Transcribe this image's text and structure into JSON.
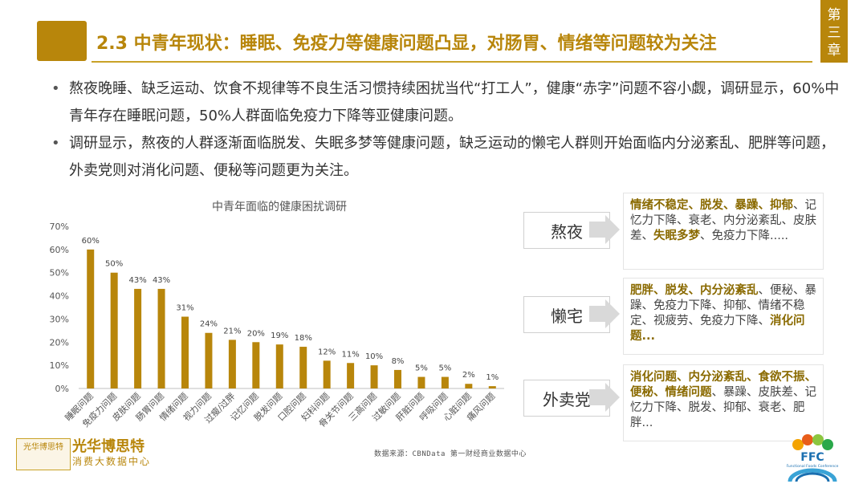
{
  "header": {
    "title": "2.3 中青年现状：睡眠、免疫力等健康问题凸显，对肠胃、情绪等问题较为关注",
    "chapter_tab": "第三章"
  },
  "bullets": [
    "熬夜晚睡、缺乏运动、饮食不规律等不良生活习惯持续困扰当代“打工人”，健康“赤字”问题不容小觑，调研显示，60%中青年存在睡眠问题，50%人群面临免疫力下降等亚健康问题。",
    "调研显示，熬夜的人群逐渐面临脱发、失眠多梦等健康问题，缺乏运动的懒宅人群则开始面临内分泌紊乱、肥胖等问题，外卖党则对消化问题、便秘等问题更为关注。"
  ],
  "chart_data": {
    "type": "bar",
    "title": "中青年面临的健康困扰调研",
    "categories": [
      "睡眠问题",
      "免疫力问题",
      "皮肤问题",
      "肠胃问题",
      "情绪问题",
      "视力问题",
      "过瘦/过胖",
      "记忆问题",
      "脱发问题",
      "口腔问题",
      "妇科问题",
      "骨关节问题",
      "三高问题",
      "过敏问题",
      "肝脏问题",
      "呼吸问题",
      "心脏问题",
      "痛风问题"
    ],
    "values": [
      60,
      50,
      43,
      43,
      31,
      24,
      21,
      20,
      19,
      18,
      12,
      11,
      10,
      8,
      5,
      5,
      2,
      1
    ],
    "value_labels": [
      "60%",
      "50%",
      "43%",
      "43%",
      "31%",
      "24%",
      "21%",
      "20%",
      "19%",
      "18%",
      "12%",
      "11%",
      "10%",
      "8%",
      "5%",
      "5%",
      "2%",
      "1%"
    ],
    "yticks": [
      "0%",
      "10%",
      "20%",
      "30%",
      "40%",
      "50%",
      "60%",
      "70%"
    ],
    "ylim": [
      0,
      70
    ],
    "grid": false,
    "bar_color": "#b8860b",
    "xlabel": "",
    "ylabel": ""
  },
  "source_note": "数据来源：CBNData 第一财经商业数据中心",
  "groups": [
    {
      "label": "熬夜",
      "segments": [
        {
          "t": "情绪不稳定、脱发、暴躁、抑郁",
          "h": true
        },
        {
          "t": "、记忆力下降、衰老、内分泌紊乱、皮肤差、",
          "h": false
        },
        {
          "t": "失眠多梦",
          "h": true
        },
        {
          "t": "、免疫力下降.....",
          "h": false
        }
      ]
    },
    {
      "label": "懒宅",
      "segments": [
        {
          "t": "肥胖、脱发、内分泌紊乱",
          "h": true
        },
        {
          "t": "、便秘、暴躁、免疫力下降、抑郁、情绪不稳定、视疲劳、免疫力下降、",
          "h": false
        },
        {
          "t": "消化问题...",
          "h": true
        }
      ]
    },
    {
      "label": "外卖党",
      "segments": [
        {
          "t": "消化问题、内分泌紊乱、食欲不振、便秘、情绪问题",
          "h": true
        },
        {
          "t": "、暴躁、皮肤差、记忆力下降、脱发、抑郁、衰老、肥胖...",
          "h": false
        }
      ]
    }
  ],
  "logo_left": {
    "seal": "光华博思特",
    "name": "光华博思特",
    "sub": "消费大数据中心"
  },
  "logo_right": {
    "text": "FFC",
    "sub": "Functional Foods Conference"
  },
  "colors": {
    "accent": "#b8860b",
    "highlight": "#8a6a00"
  }
}
